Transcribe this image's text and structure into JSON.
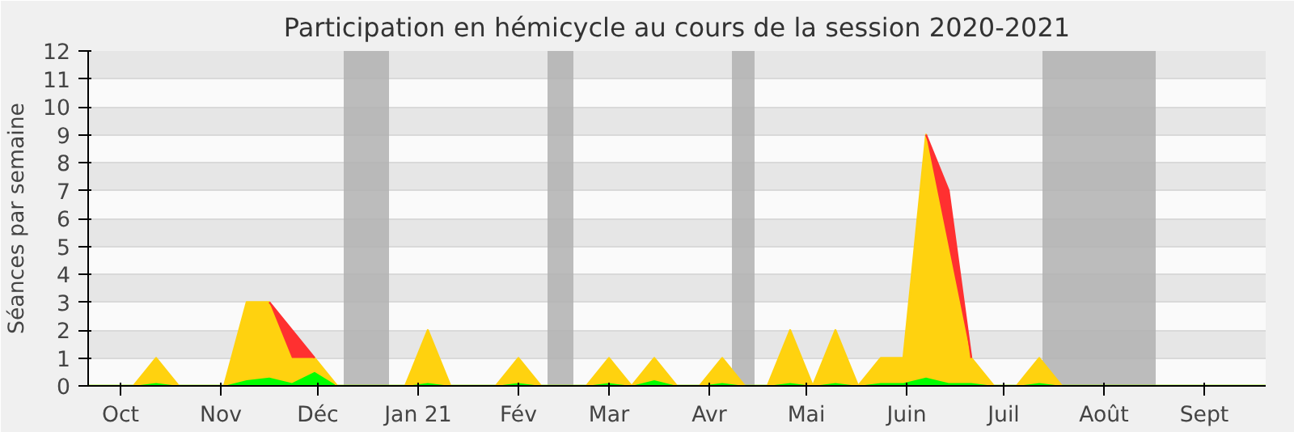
{
  "chart_data": {
    "type": "area",
    "title": "Participation en hémicycle au cours de la session 2020-2021",
    "ylabel": "Séances par semaine",
    "x": [
      "2020-09-21",
      "2020-09-28",
      "2020-10-05",
      "2020-10-12",
      "2020-10-19",
      "2020-10-26",
      "2020-11-02",
      "2020-11-09",
      "2020-11-16",
      "2020-11-23",
      "2020-11-30",
      "2020-12-07",
      "2020-12-14",
      "2020-12-21",
      "2020-12-28",
      "2021-01-04",
      "2021-01-11",
      "2021-01-18",
      "2021-01-25",
      "2021-02-01",
      "2021-02-08",
      "2021-02-15",
      "2021-02-22",
      "2021-03-01",
      "2021-03-08",
      "2021-03-15",
      "2021-03-22",
      "2021-03-29",
      "2021-04-05",
      "2021-04-12",
      "2021-04-19",
      "2021-04-26",
      "2021-05-03",
      "2021-05-10",
      "2021-05-17",
      "2021-05-24",
      "2021-05-31",
      "2021-06-07",
      "2021-06-14",
      "2021-06-21",
      "2021-06-28",
      "2021-07-05",
      "2021-07-12",
      "2021-07-19",
      "2021-07-26",
      "2021-08-02",
      "2021-08-09",
      "2021-08-16",
      "2021-08-23",
      "2021-08-30",
      "2021-09-06",
      "2021-09-13",
      "2021-09-20"
    ],
    "series": [
      {
        "color": "#00ff00",
        "values": [
          0,
          0,
          0,
          0.1,
          0,
          0,
          0,
          0.2,
          0.3,
          0.1,
          0.5,
          0,
          0,
          0,
          0,
          0.1,
          0,
          0,
          0,
          0.1,
          0,
          0,
          0,
          0.1,
          0,
          0.2,
          0,
          0,
          0.1,
          0,
          0,
          0.1,
          0,
          0.1,
          0,
          0.1,
          0.1,
          0.3,
          0.1,
          0.1,
          0,
          0,
          0.1,
          0,
          0,
          0,
          0,
          0,
          0,
          0,
          0,
          0,
          0
        ]
      },
      {
        "color": "#ffd20f",
        "values": [
          0,
          0,
          0,
          0.9,
          0,
          0,
          0,
          2.8,
          2.7,
          0.9,
          0.5,
          0,
          0,
          0,
          0,
          1.9,
          0,
          0,
          0,
          0.9,
          0,
          0,
          0,
          0.9,
          0,
          0.8,
          0,
          0,
          0.9,
          0,
          0,
          1.9,
          0,
          1.9,
          0,
          0.9,
          0.9,
          8.7,
          4.9,
          0.9,
          0,
          0,
          0.9,
          0,
          0,
          0,
          0,
          0,
          0,
          0,
          0,
          0,
          0
        ]
      },
      {
        "color": "#ff3030",
        "values": [
          null,
          null,
          null,
          null,
          null,
          null,
          null,
          null,
          0,
          1,
          0,
          null,
          null,
          null,
          null,
          null,
          null,
          null,
          null,
          null,
          null,
          null,
          null,
          null,
          null,
          null,
          null,
          null,
          null,
          null,
          null,
          null,
          null,
          null,
          null,
          null,
          null,
          0,
          2,
          0,
          null,
          null,
          null,
          null,
          null,
          null,
          null,
          null,
          null,
          null,
          null,
          null,
          null
        ]
      }
    ],
    "stacked": true,
    "xlim": [
      "2020-09-21",
      "2021-09-20"
    ],
    "xticks": [
      {
        "value": "2020-10-01",
        "label": "Oct"
      },
      {
        "value": "2020-11-01",
        "label": "Nov"
      },
      {
        "value": "2020-12-01",
        "label": "Déc"
      },
      {
        "value": "2021-01-01",
        "label": "Jan 21"
      },
      {
        "value": "2021-02-01",
        "label": "Fév"
      },
      {
        "value": "2021-03-01",
        "label": "Mar"
      },
      {
        "value": "2021-04-01",
        "label": "Avr"
      },
      {
        "value": "2021-05-01",
        "label": "Mai"
      },
      {
        "value": "2021-06-01",
        "label": "Juin"
      },
      {
        "value": "2021-07-01",
        "label": "Juil"
      },
      {
        "value": "2021-08-01",
        "label": "Août"
      },
      {
        "value": "2021-09-01",
        "label": "Sept"
      }
    ],
    "ylim": [
      0,
      12
    ],
    "yticks": [
      0,
      1,
      2,
      3,
      4,
      5,
      6,
      7,
      8,
      9,
      10,
      11,
      12
    ],
    "grid": "y",
    "bands": [
      {
        "axis": "x",
        "from": "2020-12-09",
        "to": "2020-12-23",
        "color": "#b0b0b0"
      },
      {
        "axis": "x",
        "from": "2021-02-10",
        "to": "2021-02-18",
        "color": "#b0b0b0"
      },
      {
        "axis": "x",
        "from": "2021-04-08",
        "to": "2021-04-15",
        "color": "#b0b0b0"
      },
      {
        "axis": "x",
        "from": "2021-07-13",
        "to": "2021-08-17",
        "color": "#b0b0b0"
      }
    ]
  }
}
